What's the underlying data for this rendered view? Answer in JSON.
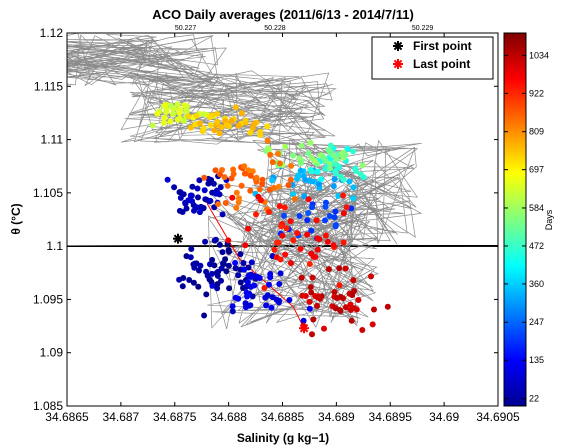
{
  "chart_data": {
    "type": "scatter",
    "title": "ACO Daily averages (2011/6/13 - 2014/7/11)",
    "xlabel": "Salinity (g kg−1)",
    "ylabel": "θ (°C)",
    "xlim": [
      34.6865,
      34.6905
    ],
    "ylim": [
      1.085,
      1.12
    ],
    "x_ticks": [
      "34.6865",
      "34.687",
      "34.6875",
      "34.688",
      "34.6885",
      "34.689",
      "34.6895",
      "34.69",
      "34.6905"
    ],
    "y_ticks": [
      "1.085",
      "1.09",
      "1.095",
      "1.1",
      "1.105",
      "1.11",
      "1.115",
      "1.12"
    ],
    "contour_labels": [
      {
        "text": "50.227",
        "x": 34.6876
      },
      {
        "text": "50.228",
        "x": 34.68843
      },
      {
        "text": "50.229",
        "x": 34.6898
      }
    ],
    "contour_slope": 0.0069,
    "contour_spacing_x": 0.000355,
    "contour_anchor": {
      "x": 34.6875,
      "y": 1.1
    },
    "colorbar": {
      "label": "Days",
      "ticks": [
        "22",
        "135",
        "247",
        "360",
        "472",
        "584",
        "697",
        "809",
        "922",
        "1034"
      ],
      "range": [
        0,
        1100
      ]
    },
    "legend": [
      {
        "label": "First point",
        "color": "#000000",
        "marker": "asterisk"
      },
      {
        "label": "Last point",
        "color": "#ff0000",
        "marker": "asterisk"
      }
    ],
    "legend_position": "top-right",
    "first_point": {
      "x": 34.68753,
      "y": 1.1007
    },
    "last_point": {
      "x": 34.6887,
      "y": 1.0923
    },
    "groups": [
      {
        "day": 30,
        "n": 60,
        "cx": 34.6879,
        "cy": 1.0975,
        "sx": 0.00045,
        "sy": 0.003,
        "seed": 11
      },
      {
        "day": 60,
        "n": 45,
        "cx": 34.68775,
        "cy": 1.1045,
        "sx": 0.00035,
        "sy": 0.002,
        "seed": 12
      },
      {
        "day": 110,
        "n": 40,
        "cx": 34.6883,
        "cy": 1.096,
        "sx": 0.0004,
        "sy": 0.0025,
        "seed": 13
      },
      {
        "day": 200,
        "n": 20,
        "cx": 34.6888,
        "cy": 1.1025,
        "sx": 0.0003,
        "sy": 0.002,
        "seed": 14
      },
      {
        "day": 330,
        "n": 30,
        "cx": 34.6888,
        "cy": 1.106,
        "sx": 0.0004,
        "sy": 0.0018,
        "seed": 15
      },
      {
        "day": 450,
        "n": 30,
        "cx": 34.689,
        "cy": 1.1075,
        "sx": 0.00035,
        "sy": 0.0015,
        "seed": 16
      },
      {
        "day": 560,
        "n": 35,
        "cx": 34.6888,
        "cy": 1.1085,
        "sx": 0.0004,
        "sy": 0.0015,
        "seed": 17
      },
      {
        "day": 640,
        "n": 35,
        "cx": 34.6875,
        "cy": 1.1125,
        "sx": 0.0003,
        "sy": 0.0012,
        "seed": 18
      },
      {
        "day": 750,
        "n": 35,
        "cx": 34.688,
        "cy": 1.1115,
        "sx": 0.0004,
        "sy": 0.0015,
        "seed": 19
      },
      {
        "day": 850,
        "n": 45,
        "cx": 34.6882,
        "cy": 1.1065,
        "sx": 0.00045,
        "sy": 0.003,
        "seed": 20
      },
      {
        "day": 950,
        "n": 45,
        "cx": 34.6886,
        "cy": 1.101,
        "sx": 0.0005,
        "sy": 0.004,
        "seed": 21
      },
      {
        "day": 1020,
        "n": 45,
        "cx": 34.689,
        "cy": 1.095,
        "sx": 0.0004,
        "sy": 0.0035,
        "seed": 22
      }
    ]
  }
}
